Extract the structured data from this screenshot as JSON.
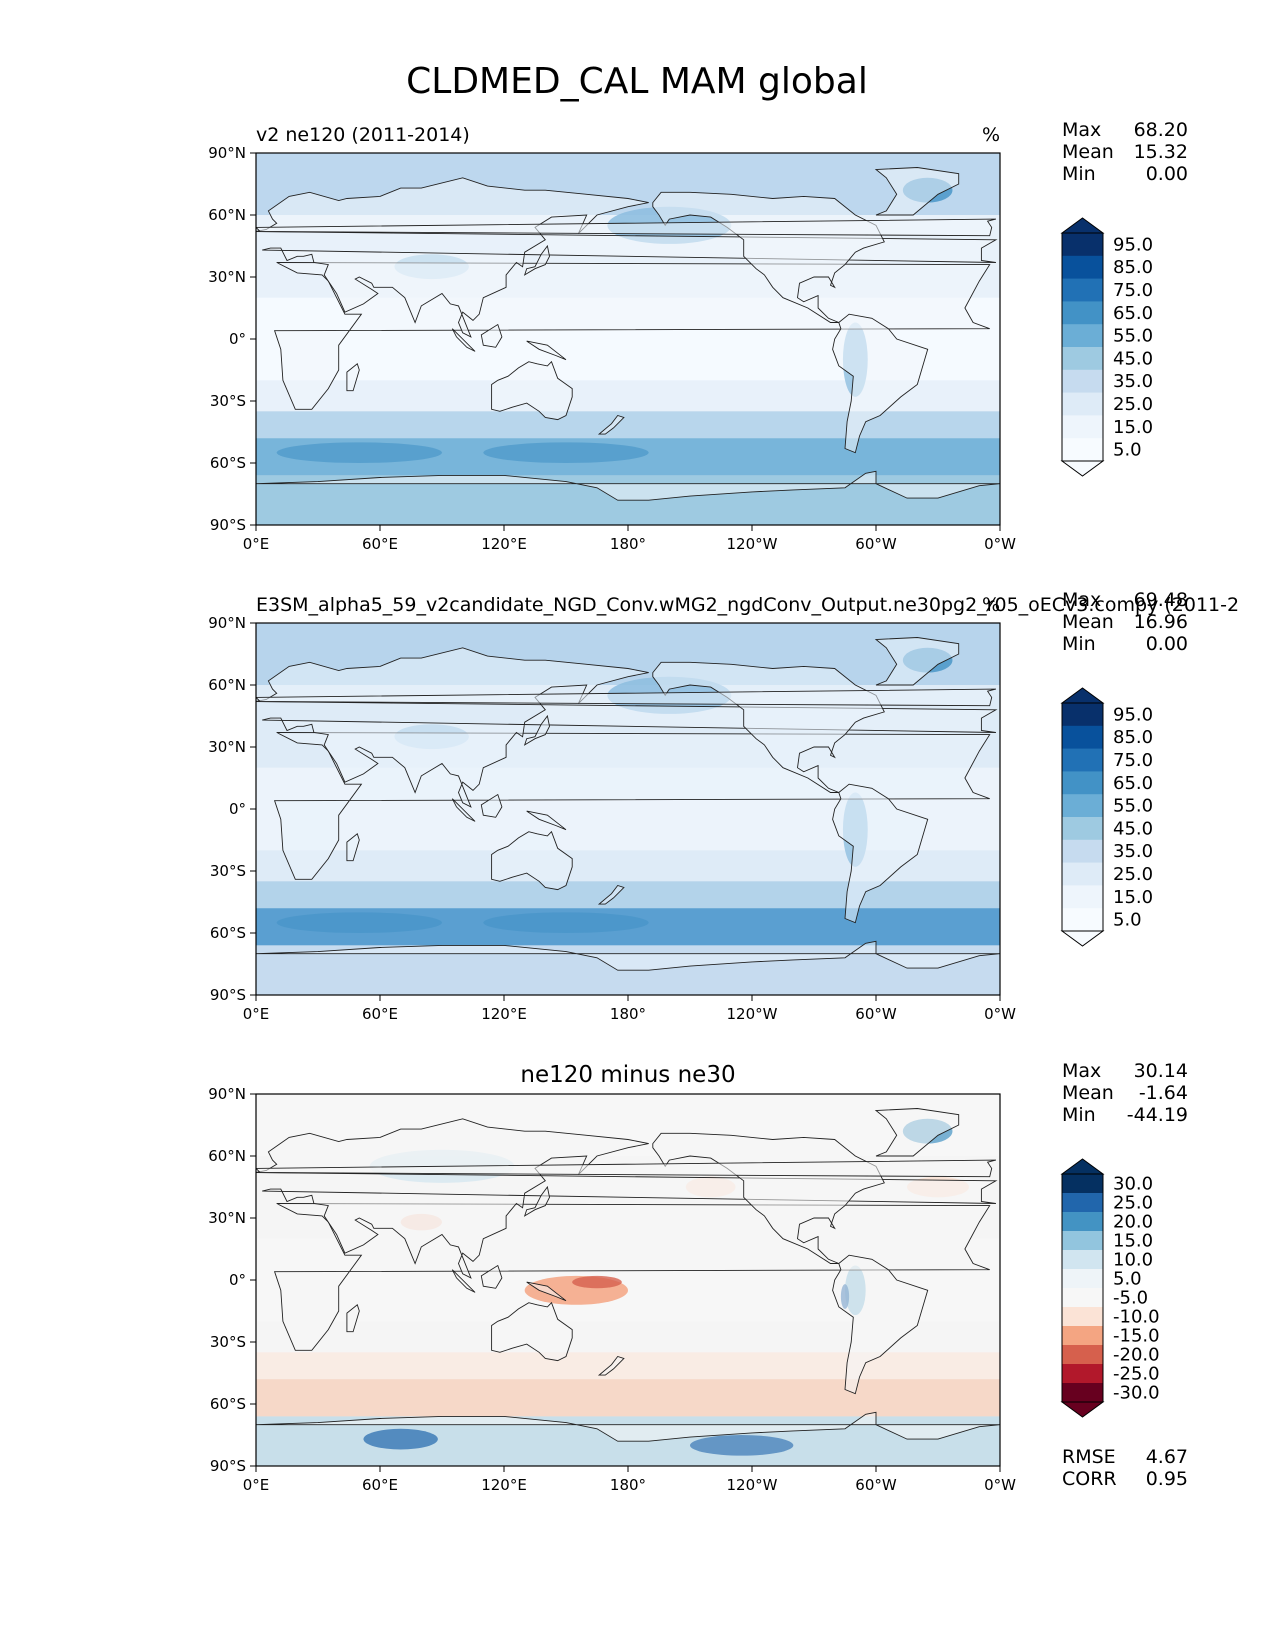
{
  "figure_title": "CLDMED_CAL MAM global",
  "lat_ticks": [
    "90°N",
    "60°N",
    "30°N",
    "0°",
    "30°S",
    "60°S",
    "90°S"
  ],
  "lon_ticks": [
    "0°E",
    "60°E",
    "120°E",
    "180°",
    "120°W",
    "60°W",
    "0°W"
  ],
  "stat_labels": {
    "max": "Max",
    "mean": "Mean",
    "min": "Min",
    "rmse": "RMSE",
    "corr": "CORR"
  },
  "panels": [
    {
      "title_left": "v2 ne120 (2011-2014)",
      "title_center": "",
      "units": "%",
      "stats": {
        "max": "68.20",
        "mean": "15.32",
        "min": "0.00"
      },
      "colorbar": {
        "labels": [
          "95.0",
          "85.0",
          "75.0",
          "65.0",
          "55.0",
          "45.0",
          "35.0",
          "25.0",
          "15.0",
          "5.0"
        ],
        "colors": [
          "#08306b",
          "#08519c",
          "#2171b5",
          "#4292c6",
          "#6baed6",
          "#9ecae1",
          "#c6dbef",
          "#deebf7",
          "#eef5fc",
          "#f7fbff"
        ]
      },
      "map_colors": {
        "ocean": "#e8f1fa",
        "land": "#f1f6fc",
        "band_north": "#bdd7ee",
        "storm_track": "#8fbfe0",
        "south_band": "#6baed6",
        "antarctica": "#9ecae1",
        "tropics": "#f7fbff",
        "accent": "#4292c6"
      }
    },
    {
      "title_left": "E3SM_alpha5_59_v2candidate_NGD_Conv.wMG2_ngdConv_Output.ne30pg2_r05_oECv3.compy (2011-2",
      "title_center": "",
      "units": "%",
      "stats": {
        "max": "69.48",
        "mean": "16.96",
        "min": "0.00"
      },
      "colorbar": {
        "labels": [
          "95.0",
          "85.0",
          "75.0",
          "65.0",
          "55.0",
          "45.0",
          "35.0",
          "25.0",
          "15.0",
          "5.0"
        ],
        "colors": [
          "#08306b",
          "#08519c",
          "#2171b5",
          "#4292c6",
          "#6baed6",
          "#9ecae1",
          "#c6dbef",
          "#deebf7",
          "#eef5fc",
          "#f7fbff"
        ]
      },
      "map_colors": {
        "ocean": "#deebf7",
        "land": "#eaf2fb",
        "band_north": "#b7d4ec",
        "storm_track": "#8fbfe0",
        "south_band": "#4b97cc",
        "antarctica": "#c6dbef",
        "tropics": "#eef5fc",
        "accent": "#4292c6"
      }
    },
    {
      "title_left": "",
      "title_center": "ne120 minus ne30",
      "units": "",
      "stats": {
        "max": "30.14",
        "mean": "-1.64",
        "min": "-44.19",
        "rmse": "4.67",
        "corr": "0.95"
      },
      "colorbar": {
        "labels": [
          "30.0",
          "25.0",
          "20.0",
          "15.0",
          "10.0",
          "5.0",
          "-5.0",
          "-10.0",
          "-15.0",
          "-20.0",
          "-25.0",
          "-30.0"
        ],
        "colors": [
          "#053061",
          "#2166ac",
          "#4393c3",
          "#92c5de",
          "#d1e5f0",
          "#eef4f8",
          "#f7f7f7",
          "#fbe3d6",
          "#f4a582",
          "#d6604d",
          "#b2182b",
          "#67001f"
        ]
      },
      "map_colors": {
        "ocean": "#f5f5f5",
        "land": "#f5f5f5",
        "band_north": "#f7f7f7",
        "storm_track": "#fbe3d6",
        "south_band": "#f7c4aa",
        "antarctica": "#92c5de",
        "tropics": "#f7f7f7",
        "accent": "#2166ac",
        "warm": "#d6604d"
      }
    }
  ]
}
